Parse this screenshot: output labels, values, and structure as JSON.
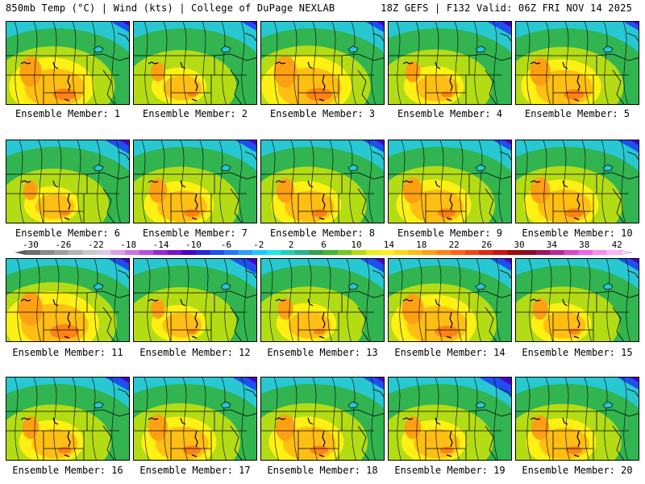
{
  "header": {
    "left": "850mb Temp (°C) | Wind (kts) | College of DuPage NEXLAB",
    "right": "18Z GEFS | F132 Valid: 06Z FRI NOV 14 2025"
  },
  "member_label_prefix": "Ensemble Member: ",
  "members": [
    {
      "id": 1,
      "label": "Ensemble Member: 1",
      "warmth": 0.85,
      "cold_ne": 0.35
    },
    {
      "id": 2,
      "label": "Ensemble Member: 2",
      "warmth": 0.55,
      "cold_ne": 0.3
    },
    {
      "id": 3,
      "label": "Ensemble Member: 3",
      "warmth": 0.9,
      "cold_ne": 0.35
    },
    {
      "id": 4,
      "label": "Ensemble Member: 4",
      "warmth": 0.6,
      "cold_ne": 0.45
    },
    {
      "id": 5,
      "label": "Ensemble Member: 5",
      "warmth": 0.8,
      "cold_ne": 0.3
    },
    {
      "id": 6,
      "label": "Ensemble Member: 6",
      "warmth": 0.55,
      "cold_ne": 0.45
    },
    {
      "id": 7,
      "label": "Ensemble Member: 7",
      "warmth": 0.7,
      "cold_ne": 0.4
    },
    {
      "id": 8,
      "label": "Ensemble Member: 8",
      "warmth": 0.7,
      "cold_ne": 0.4
    },
    {
      "id": 9,
      "label": "Ensemble Member: 9",
      "warmth": 0.75,
      "cold_ne": 0.35
    },
    {
      "id": 10,
      "label": "Ensemble Member: 10",
      "warmth": 0.75,
      "cold_ne": 0.4
    },
    {
      "id": 11,
      "label": "Ensemble Member: 11",
      "warmth": 0.95,
      "cold_ne": 0.4
    },
    {
      "id": 12,
      "label": "Ensemble Member: 12",
      "warmth": 0.55,
      "cold_ne": 0.5
    },
    {
      "id": 13,
      "label": "Ensemble Member: 13",
      "warmth": 0.6,
      "cold_ne": 0.45
    },
    {
      "id": 14,
      "label": "Ensemble Member: 14",
      "warmth": 0.85,
      "cold_ne": 0.4
    },
    {
      "id": 15,
      "label": "Ensemble Member: 15",
      "warmth": 0.6,
      "cold_ne": 0.4
    },
    {
      "id": 16,
      "label": "Ensemble Member: 16",
      "warmth": 0.65,
      "cold_ne": 0.45
    },
    {
      "id": 17,
      "label": "Ensemble Member: 17",
      "warmth": 0.75,
      "cold_ne": 0.45
    },
    {
      "id": 18,
      "label": "Ensemble Member: 18",
      "warmth": 0.75,
      "cold_ne": 0.4
    },
    {
      "id": 19,
      "label": "Ensemble Member: 19",
      "warmth": 0.65,
      "cold_ne": 0.6
    },
    {
      "id": 20,
      "label": "Ensemble Member: 20",
      "warmth": 0.7,
      "cold_ne": 0.4
    }
  ],
  "colorbar": {
    "unit": "°C",
    "ticks": [
      "-30",
      "-26",
      "-22",
      "-18",
      "-14",
      "-10",
      "-6",
      "-2",
      "2",
      "6",
      "10",
      "14",
      "18",
      "22",
      "26",
      "30",
      "34",
      "38",
      "42"
    ],
    "colors": [
      "#6e6e6e",
      "#8a8a8a",
      "#a0a0a0",
      "#b4b4b4",
      "#c8c8c8",
      "#dcc8e8",
      "#d8a0e8",
      "#c878e0",
      "#b450dc",
      "#9628d2",
      "#7814c8",
      "#4b00c8",
      "#2828dc",
      "#1e50f0",
      "#2878ff",
      "#28a0ff",
      "#1ec8ff",
      "#1ee6e6",
      "#1ed2b4",
      "#28b48c",
      "#32a050",
      "#46b432",
      "#78c81e",
      "#b4dc14",
      "#e6f014",
      "#fff014",
      "#ffd714",
      "#ffbe14",
      "#ffa014",
      "#ff8214",
      "#ff6414",
      "#f04614",
      "#dc2814",
      "#c81414",
      "#a00a0a",
      "#8c0a28",
      "#a0145a",
      "#be2896",
      "#dc46c8",
      "#f064e6",
      "#fa8cf0",
      "#ffb4f5"
    ]
  }
}
